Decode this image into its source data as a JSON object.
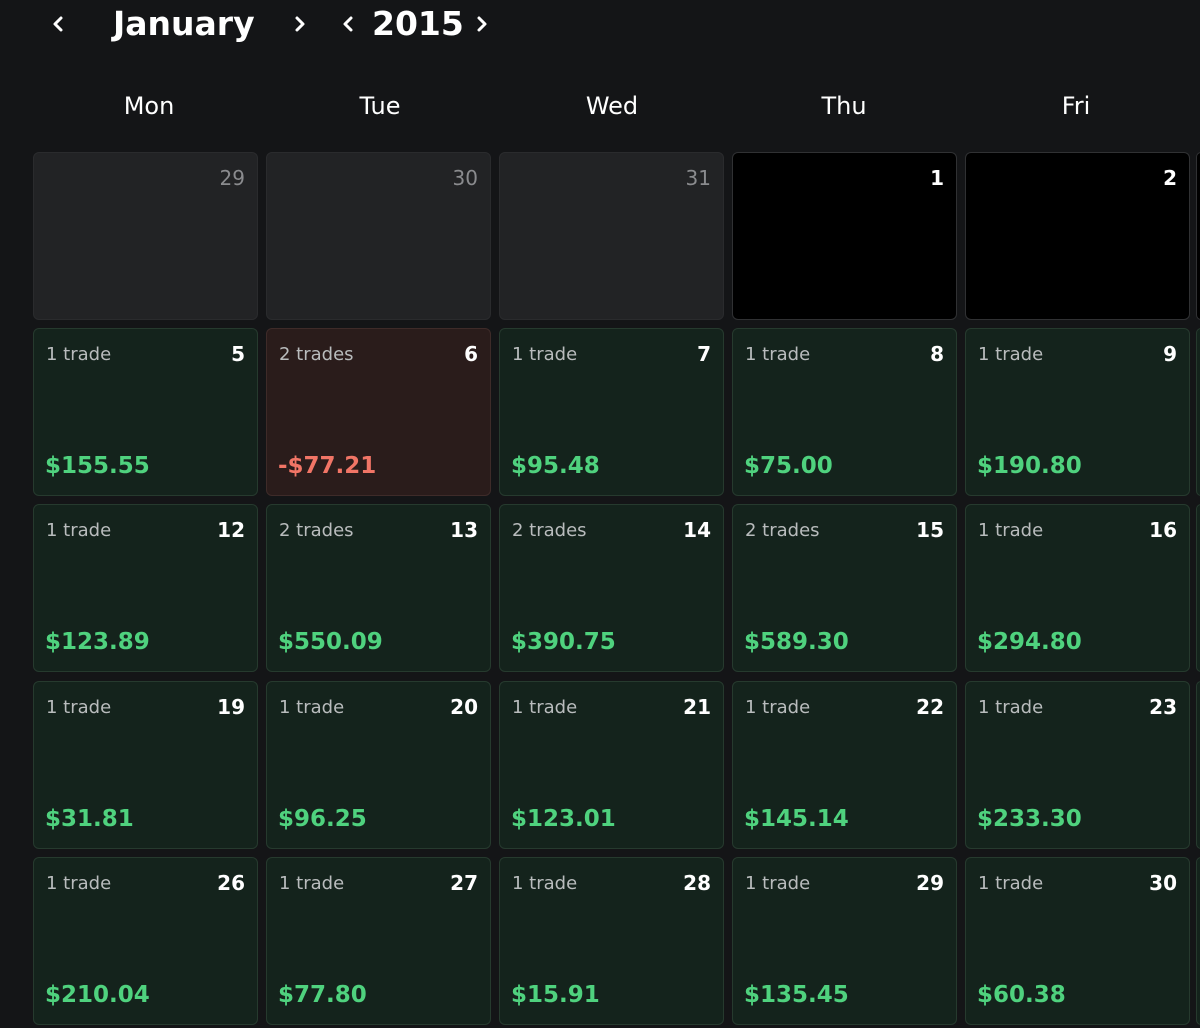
{
  "header": {
    "month": "January",
    "year": "2015",
    "prev_month_icon": "chevron-left-icon",
    "next_month_icon": "chevron-right-icon",
    "prev_year_icon": "chevron-left-icon",
    "next_year_icon": "chevron-right-icon"
  },
  "weekdays": [
    "Mon",
    "Tue",
    "Wed",
    "Thu",
    "Fri"
  ],
  "colors": {
    "background": "#141517",
    "profit_cell": "#14231c",
    "loss_cell": "#2a1c1b",
    "profit_text": "#4fd27e",
    "loss_text": "#f17566",
    "empty_cell": "#000000",
    "other_month_cell": "#222325"
  },
  "weeks": [
    {
      "days": [
        {
          "day": "29",
          "state": "other-month",
          "trades": "",
          "pnl": ""
        },
        {
          "day": "30",
          "state": "other-month",
          "trades": "",
          "pnl": ""
        },
        {
          "day": "31",
          "state": "other-month",
          "trades": "",
          "pnl": ""
        },
        {
          "day": "1",
          "state": "no-trades",
          "trades": "",
          "pnl": ""
        },
        {
          "day": "2",
          "state": "no-trades",
          "trades": "",
          "pnl": ""
        }
      ]
    },
    {
      "days": [
        {
          "day": "5",
          "state": "profit",
          "trades": "1 trade",
          "pnl": "$155.55"
        },
        {
          "day": "6",
          "state": "loss",
          "trades": "2 trades",
          "pnl": "-$77.21"
        },
        {
          "day": "7",
          "state": "profit",
          "trades": "1 trade",
          "pnl": "$95.48"
        },
        {
          "day": "8",
          "state": "profit",
          "trades": "1 trade",
          "pnl": "$75.00"
        },
        {
          "day": "9",
          "state": "profit",
          "trades": "1 trade",
          "pnl": "$190.80"
        }
      ]
    },
    {
      "days": [
        {
          "day": "12",
          "state": "profit",
          "trades": "1 trade",
          "pnl": "$123.89"
        },
        {
          "day": "13",
          "state": "profit",
          "trades": "2 trades",
          "pnl": "$550.09"
        },
        {
          "day": "14",
          "state": "profit",
          "trades": "2 trades",
          "pnl": "$390.75"
        },
        {
          "day": "15",
          "state": "profit",
          "trades": "2 trades",
          "pnl": "$589.30"
        },
        {
          "day": "16",
          "state": "profit",
          "trades": "1 trade",
          "pnl": "$294.80"
        }
      ]
    },
    {
      "days": [
        {
          "day": "19",
          "state": "profit",
          "trades": "1 trade",
          "pnl": "$31.81"
        },
        {
          "day": "20",
          "state": "profit",
          "trades": "1 trade",
          "pnl": "$96.25"
        },
        {
          "day": "21",
          "state": "profit",
          "trades": "1 trade",
          "pnl": "$123.01"
        },
        {
          "day": "22",
          "state": "profit",
          "trades": "1 trade",
          "pnl": "$145.14"
        },
        {
          "day": "23",
          "state": "profit",
          "trades": "1 trade",
          "pnl": "$233.30"
        }
      ]
    },
    {
      "days": [
        {
          "day": "26",
          "state": "profit",
          "trades": "1 trade",
          "pnl": "$210.04"
        },
        {
          "day": "27",
          "state": "profit",
          "trades": "1 trade",
          "pnl": "$77.80"
        },
        {
          "day": "28",
          "state": "profit",
          "trades": "1 trade",
          "pnl": "$15.91"
        },
        {
          "day": "29",
          "state": "profit",
          "trades": "1 trade",
          "pnl": "$135.45"
        },
        {
          "day": "30",
          "state": "profit",
          "trades": "1 trade",
          "pnl": "$60.38"
        }
      ]
    }
  ]
}
